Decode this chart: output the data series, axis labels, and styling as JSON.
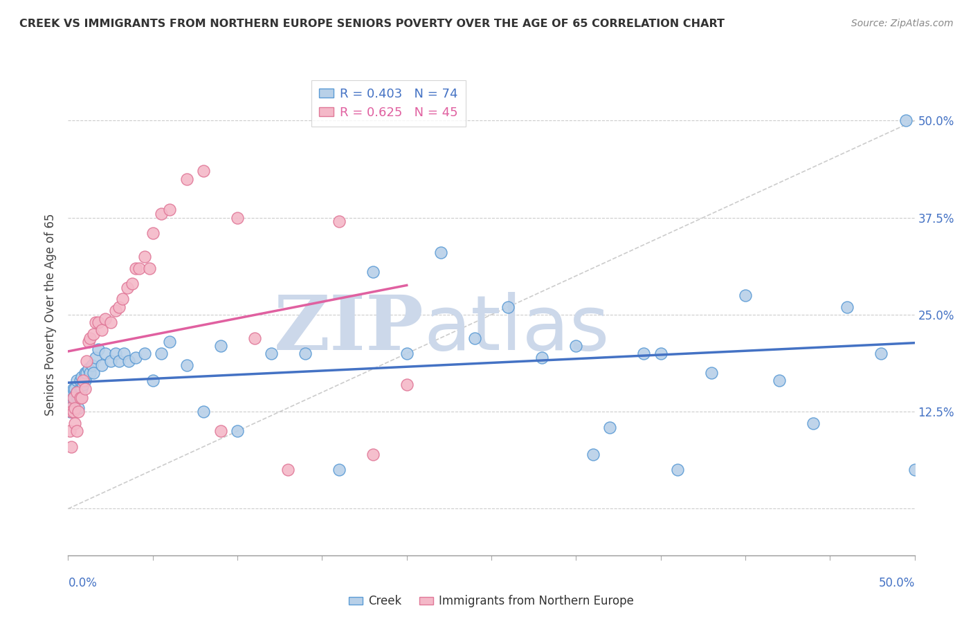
{
  "title": "CREEK VS IMMIGRANTS FROM NORTHERN EUROPE SENIORS POVERTY OVER THE AGE OF 65 CORRELATION CHART",
  "source": "Source: ZipAtlas.com",
  "ylabel": "Seniors Poverty Over the Age of 65",
  "y_ticks": [
    0.0,
    0.125,
    0.25,
    0.375,
    0.5
  ],
  "y_tick_labels": [
    "",
    "12.5%",
    "25.0%",
    "37.5%",
    "50.0%"
  ],
  "x_range": [
    0.0,
    0.5
  ],
  "y_range": [
    -0.06,
    0.56
  ],
  "creek_R": 0.403,
  "creek_N": 74,
  "imm_R": 0.625,
  "imm_N": 45,
  "creek_color": "#b8d0e8",
  "creek_edge": "#5b9bd5",
  "imm_color": "#f4b8c8",
  "imm_edge": "#e07898",
  "creek_line_color": "#4472c4",
  "imm_line_color": "#e060a0",
  "watermark_zip": "ZIP",
  "watermark_atlas": "atlas",
  "watermark_color": "#d0dff0",
  "background_color": "#ffffff",
  "creek_x": [
    0.001,
    0.001,
    0.001,
    0.001,
    0.002,
    0.002,
    0.002,
    0.002,
    0.002,
    0.003,
    0.003,
    0.003,
    0.003,
    0.004,
    0.004,
    0.004,
    0.005,
    0.005,
    0.005,
    0.006,
    0.006,
    0.007,
    0.007,
    0.008,
    0.008,
    0.009,
    0.01,
    0.01,
    0.011,
    0.012,
    0.013,
    0.014,
    0.015,
    0.016,
    0.018,
    0.02,
    0.022,
    0.025,
    0.028,
    0.03,
    0.033,
    0.036,
    0.04,
    0.045,
    0.05,
    0.055,
    0.06,
    0.07,
    0.08,
    0.09,
    0.1,
    0.12,
    0.14,
    0.16,
    0.18,
    0.2,
    0.22,
    0.24,
    0.26,
    0.28,
    0.3,
    0.32,
    0.34,
    0.36,
    0.38,
    0.4,
    0.42,
    0.44,
    0.46,
    0.48,
    0.495,
    0.5,
    0.35,
    0.31
  ],
  "creek_y": [
    0.143,
    0.13,
    0.14,
    0.125,
    0.143,
    0.13,
    0.143,
    0.125,
    0.15,
    0.143,
    0.13,
    0.143,
    0.155,
    0.143,
    0.13,
    0.155,
    0.143,
    0.15,
    0.165,
    0.143,
    0.13,
    0.155,
    0.165,
    0.155,
    0.17,
    0.16,
    0.165,
    0.175,
    0.175,
    0.18,
    0.175,
    0.185,
    0.175,
    0.195,
    0.205,
    0.185,
    0.2,
    0.19,
    0.2,
    0.19,
    0.2,
    0.19,
    0.195,
    0.2,
    0.165,
    0.2,
    0.215,
    0.185,
    0.125,
    0.21,
    0.1,
    0.2,
    0.2,
    0.05,
    0.305,
    0.2,
    0.33,
    0.22,
    0.26,
    0.195,
    0.21,
    0.105,
    0.2,
    0.05,
    0.175,
    0.275,
    0.165,
    0.11,
    0.26,
    0.2,
    0.5,
    0.05,
    0.2,
    0.07
  ],
  "imm_x": [
    0.001,
    0.001,
    0.002,
    0.002,
    0.003,
    0.003,
    0.004,
    0.004,
    0.005,
    0.005,
    0.006,
    0.007,
    0.008,
    0.009,
    0.01,
    0.011,
    0.012,
    0.013,
    0.015,
    0.016,
    0.018,
    0.02,
    0.022,
    0.025,
    0.028,
    0.03,
    0.032,
    0.035,
    0.038,
    0.04,
    0.042,
    0.045,
    0.048,
    0.05,
    0.055,
    0.06,
    0.07,
    0.08,
    0.09,
    0.1,
    0.11,
    0.13,
    0.16,
    0.18,
    0.2
  ],
  "imm_y": [
    0.1,
    0.13,
    0.08,
    0.125,
    0.125,
    0.143,
    0.11,
    0.13,
    0.1,
    0.15,
    0.125,
    0.143,
    0.143,
    0.165,
    0.155,
    0.19,
    0.215,
    0.22,
    0.225,
    0.24,
    0.24,
    0.23,
    0.245,
    0.24,
    0.255,
    0.26,
    0.27,
    0.285,
    0.29,
    0.31,
    0.31,
    0.325,
    0.31,
    0.355,
    0.38,
    0.385,
    0.425,
    0.435,
    0.1,
    0.375,
    0.22,
    0.05,
    0.37,
    0.07,
    0.16
  ]
}
